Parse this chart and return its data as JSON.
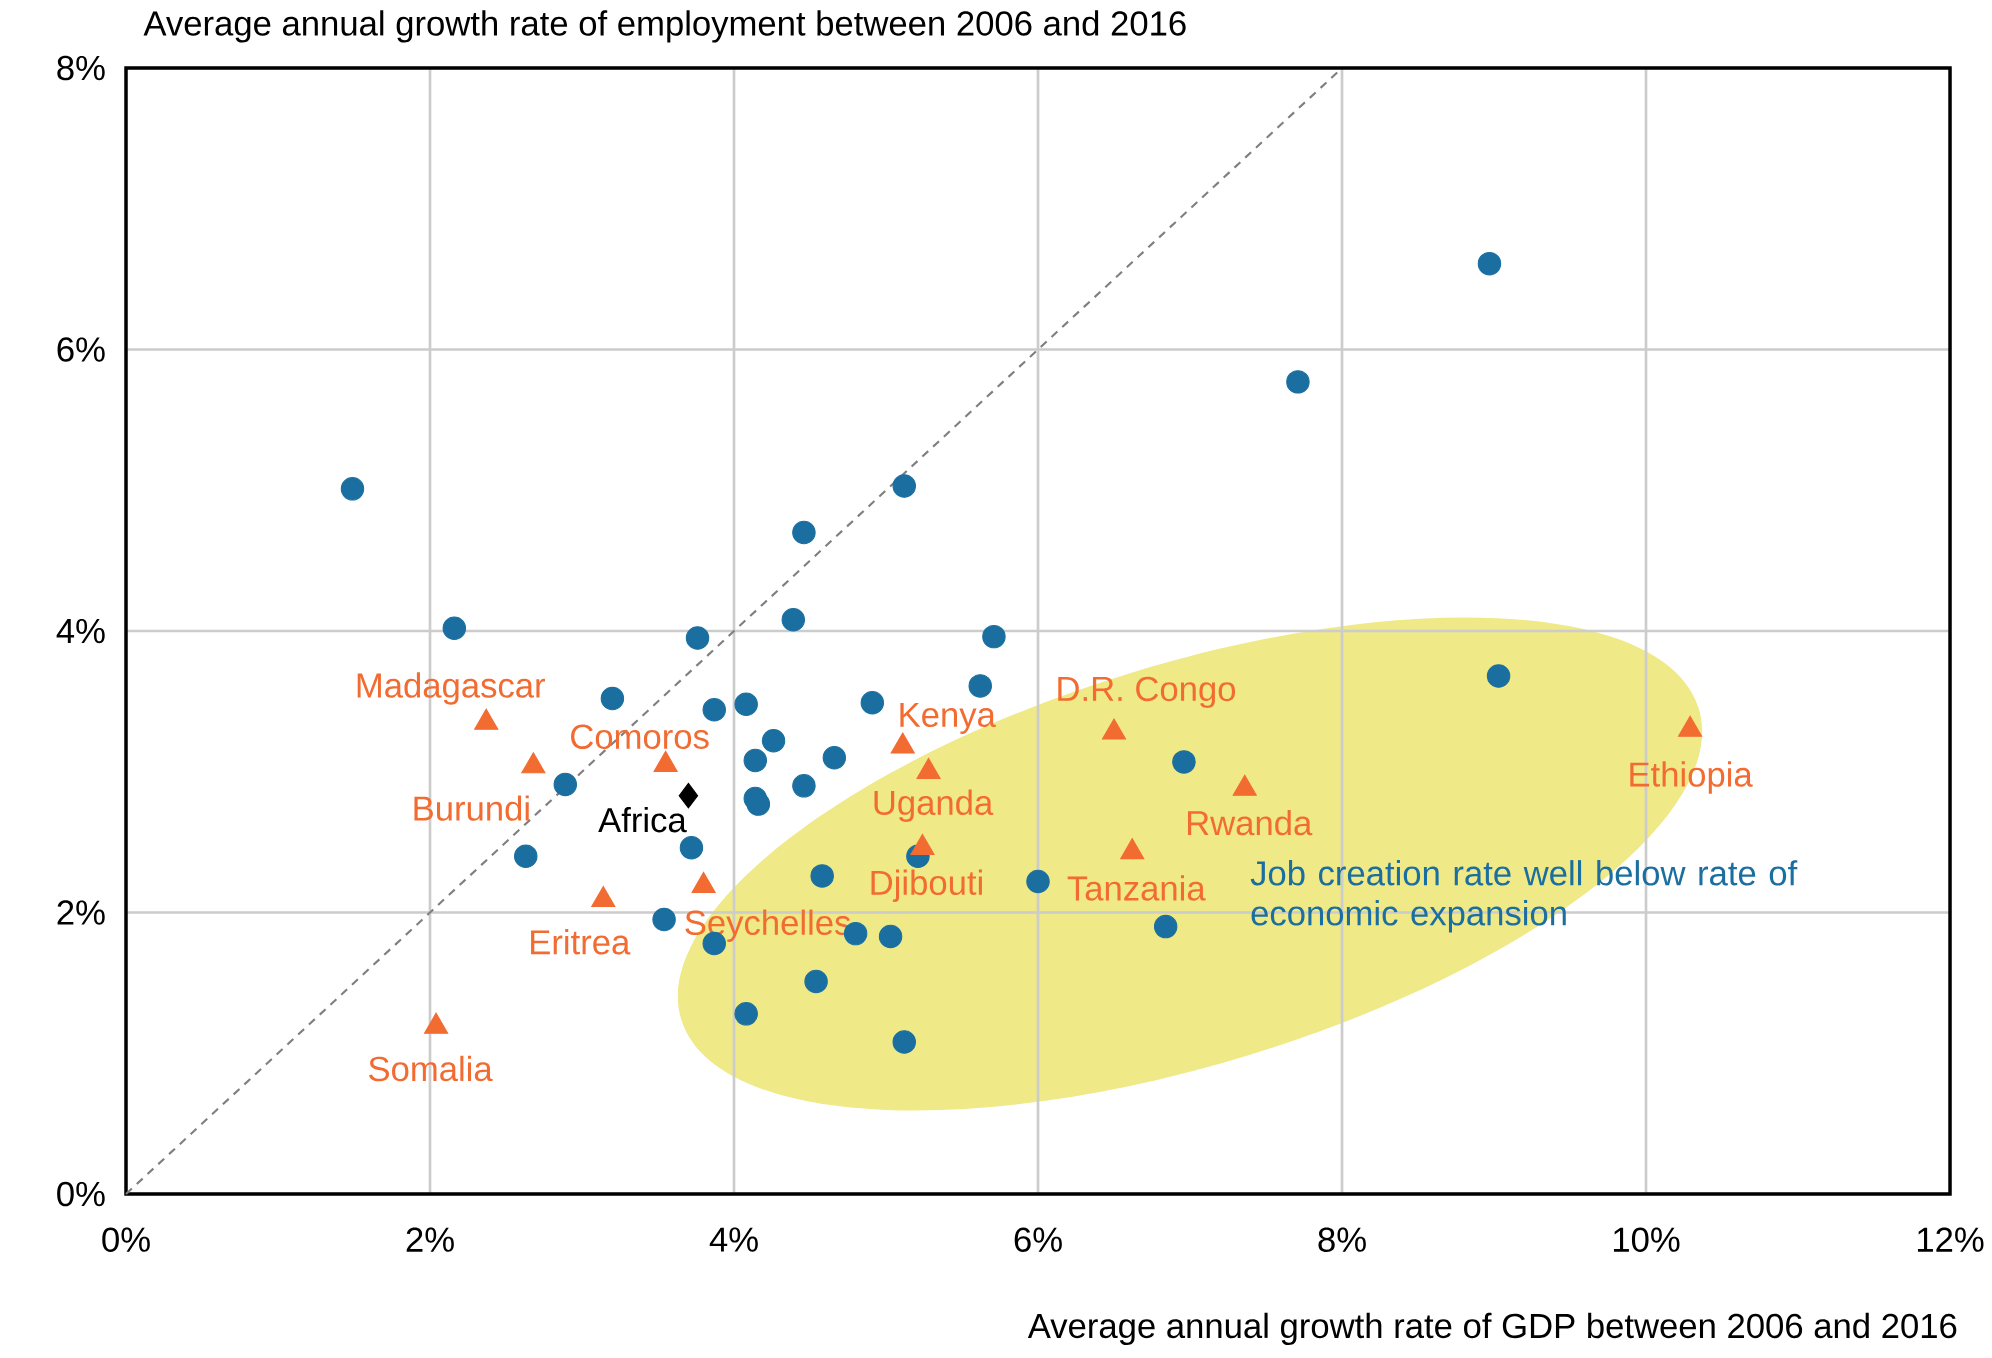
{
  "chart_data": {
    "type": "scatter",
    "title": "Average annual growth rate of employment between 2006 and 2016",
    "xlabel": "Average annual growth rate of GDP between 2006 and 2016",
    "xlim": [
      0,
      12
    ],
    "ylim": [
      0,
      8
    ],
    "xticks": [
      {
        "value": 0,
        "label": "0%"
      },
      {
        "value": 2,
        "label": "2%"
      },
      {
        "value": 4,
        "label": "4%"
      },
      {
        "value": 6,
        "label": "6%"
      },
      {
        "value": 8,
        "label": "8%"
      },
      {
        "value": 10,
        "label": "10%"
      },
      {
        "value": 12,
        "label": "12%"
      }
    ],
    "yticks": [
      {
        "value": 0,
        "label": "0%"
      },
      {
        "value": 2,
        "label": "2%"
      },
      {
        "value": 4,
        "label": "4%"
      },
      {
        "value": 6,
        "label": "6%"
      },
      {
        "value": 8,
        "label": "8%"
      }
    ],
    "grid": true,
    "series": [
      {
        "type": "line",
        "color": "#7f7f7f",
        "line_style": "dashed",
        "marker": "none",
        "x": [
          0,
          8
        ],
        "values": [
          0,
          8
        ]
      },
      {
        "color": "#1a6fa0",
        "marker": "circle",
        "x": [
          1.49,
          2.16,
          3.2,
          2.89,
          2.63,
          3.72,
          3.54,
          3.87,
          3.76,
          3.87,
          4.08,
          4.26,
          4.14,
          4.14,
          4.16,
          4.46,
          4.66,
          4.91,
          4.39,
          4.46,
          5.12,
          4.58,
          4.8,
          5.03,
          4.54,
          4.08,
          5.12,
          5.21,
          5.62,
          5.71,
          6.0,
          6.96,
          6.84,
          7.71,
          8.97,
          9.03
        ],
        "values": [
          5.01,
          4.02,
          3.52,
          2.91,
          2.4,
          2.46,
          1.95,
          1.78,
          3.95,
          3.44,
          3.48,
          3.22,
          3.08,
          2.81,
          2.77,
          2.9,
          3.1,
          3.49,
          4.08,
          4.7,
          5.03,
          2.26,
          1.85,
          1.83,
          1.51,
          1.28,
          1.08,
          2.4,
          3.61,
          3.96,
          2.22,
          3.07,
          1.9,
          5.77,
          6.61,
          3.68
        ]
      },
      {
        "color": "#f26b30",
        "marker": "triangle",
        "x": [
          2.37,
          2.68,
          3.55,
          3.14,
          3.8,
          2.04,
          5.11,
          5.28,
          5.24,
          6.5,
          6.62,
          7.36,
          10.29
        ],
        "values": [
          3.35,
          3.04,
          3.05,
          2.09,
          2.19,
          1.19,
          3.18,
          3.0,
          2.46,
          3.28,
          2.43,
          2.88,
          3.3
        ]
      },
      {
        "color": "#000000",
        "marker": "diamond",
        "x": [
          3.7
        ],
        "values": [
          2.83
        ]
      }
    ],
    "annotations": [
      {
        "text": "Madagascar",
        "x": 2.37,
        "y": 3.35
      },
      {
        "text": "Burundi",
        "x": 2.68,
        "y": 3.04
      },
      {
        "text": "Comoros",
        "x": 3.55,
        "y": 3.05
      },
      {
        "text": "Eritrea",
        "x": 3.14,
        "y": 2.09
      },
      {
        "text": "Seychelles",
        "x": 3.8,
        "y": 2.19
      },
      {
        "text": "Somalia",
        "x": 2.04,
        "y": 1.19
      },
      {
        "text": "Kenya",
        "x": 5.11,
        "y": 3.18
      },
      {
        "text": "Uganda",
        "x": 5.28,
        "y": 3.0
      },
      {
        "text": "Djibouti",
        "x": 5.24,
        "y": 2.46
      },
      {
        "text": "D.R. Congo",
        "x": 6.5,
        "y": 3.28
      },
      {
        "text": "Tanzania",
        "x": 6.62,
        "y": 2.43
      },
      {
        "text": "Rwanda",
        "x": 7.36,
        "y": 2.88
      },
      {
        "text": "Ethiopia",
        "x": 10.29,
        "y": 3.3
      },
      {
        "text": "Africa",
        "x": 3.7,
        "y": 2.83
      },
      "Job creation rate well below rate of economic expansion"
    ]
  }
}
